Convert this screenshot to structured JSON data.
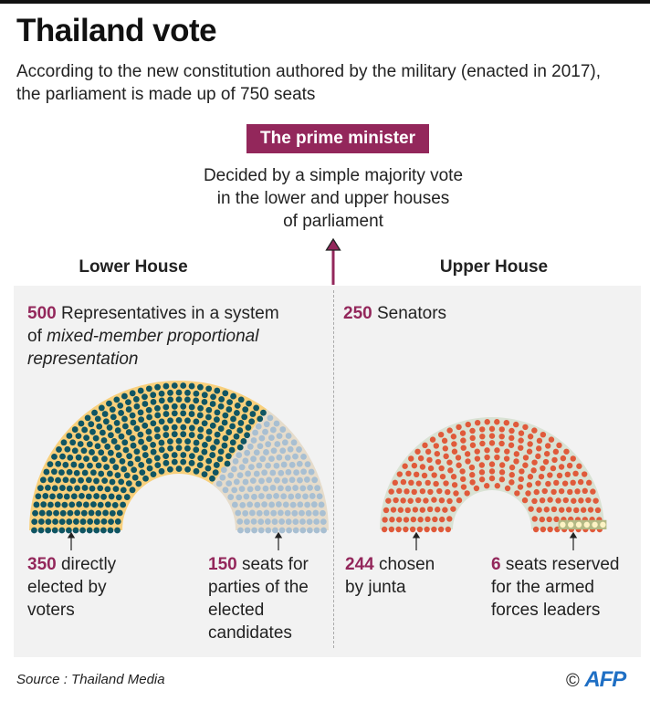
{
  "header": {
    "title": "Thailand vote",
    "subtitle_line1": "According to the new constitution authored by the military (enacted in 2017),",
    "subtitle_line2": "the parliament is made up of 750 seats"
  },
  "prime_minister": {
    "label": "The prime minister",
    "desc_line1": "Decided by a simple majority vote",
    "desc_line2": "in the lower and upper houses",
    "desc_line3": "of parliament"
  },
  "lower_house": {
    "heading": "Lower House",
    "total": "500",
    "desc_a": " Representatives in a system",
    "desc_b": "of ",
    "desc_italic": "mixed-member proportional",
    "desc_italic2": "representation",
    "groups": [
      {
        "number": "350",
        "line1": " directly",
        "line2": "elected by",
        "line3": "voters",
        "seats": 350,
        "color": "#0f5563",
        "band": "#f8d07c"
      },
      {
        "number": "150",
        "line1": " seats for",
        "line2": "parties of the",
        "line3": "elected",
        "line4": "candidates",
        "seats": 150,
        "color": "#a8bfd2",
        "band": "#e6dccb"
      }
    ]
  },
  "upper_house": {
    "heading": "Upper House",
    "total": "250",
    "desc": " Senators",
    "groups": [
      {
        "number": "244",
        "line1": " chosen",
        "line2": "by junta",
        "seats": 244,
        "color": "#e05a3a",
        "band": "#d9e2d4"
      },
      {
        "number": "6",
        "line1": " seats reserved",
        "line2": "for the armed",
        "line3": "forces leaders",
        "seats": 6,
        "color": "#fdf3c4",
        "band": "#b3b985"
      }
    ]
  },
  "footer": {
    "source": "Source : Thailand Media",
    "copyright": "©",
    "logo": "AFP"
  },
  "colors": {
    "accent": "#93275b"
  }
}
